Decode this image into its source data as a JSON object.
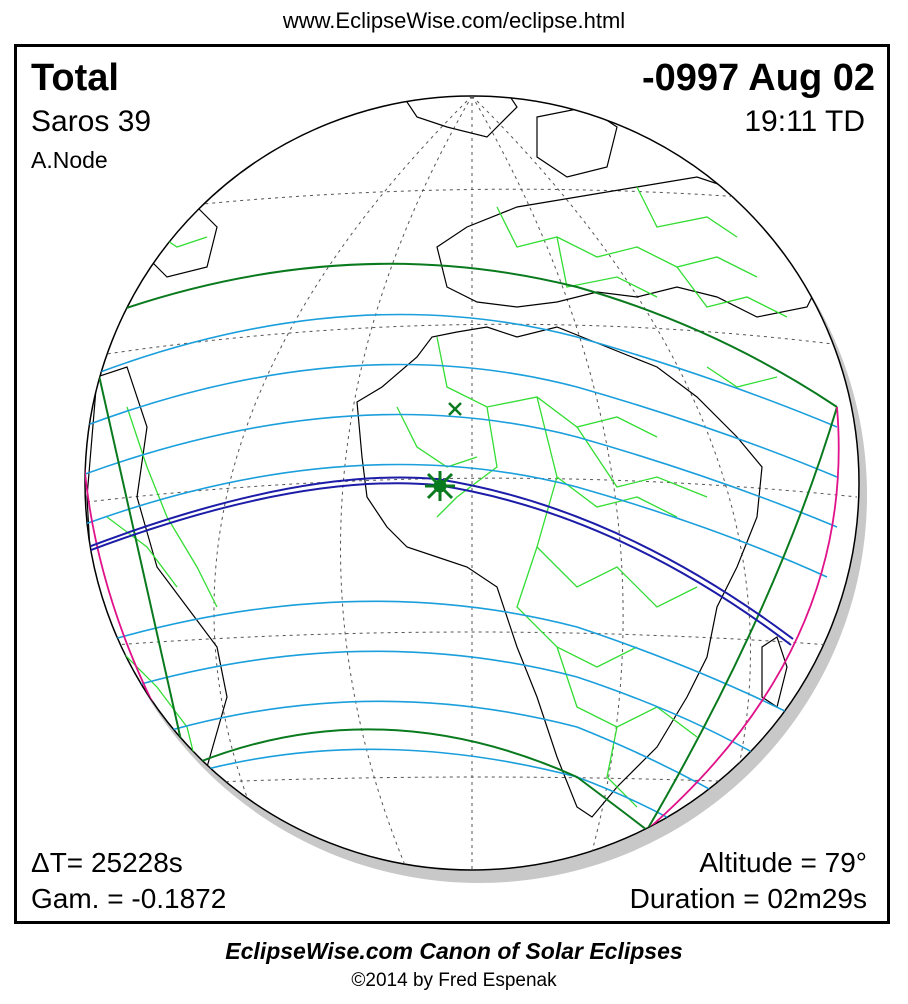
{
  "header": {
    "url": "www.EclipseWise.com/eclipse.html"
  },
  "eclipse": {
    "type": "Total",
    "saros": "Saros  39",
    "node": "A.Node",
    "date": "-0997 Aug 02",
    "time": "19:11 TD",
    "delta_t": "ΔT=  25228s",
    "gamma": "Gam. = -0.1872",
    "altitude": "Altitude = 79°",
    "duration": "Duration = 02m29s"
  },
  "footer": {
    "canon": "EclipseWise.com Canon of Solar Eclipses",
    "copyright": "©2014 by Fred Espenak"
  },
  "colors": {
    "penumbra_limit": "#0a7a1e",
    "partial_lines": "#1a9fdc",
    "central_path": "#1c1ca8",
    "rise_set": "#e0128a",
    "borders": "#33dd33",
    "coast": "#000000",
    "grid": "#555555"
  },
  "markers": {
    "greatest_eclipse_icon": "asterisk",
    "subsolar_point_icon": "x-mark"
  }
}
